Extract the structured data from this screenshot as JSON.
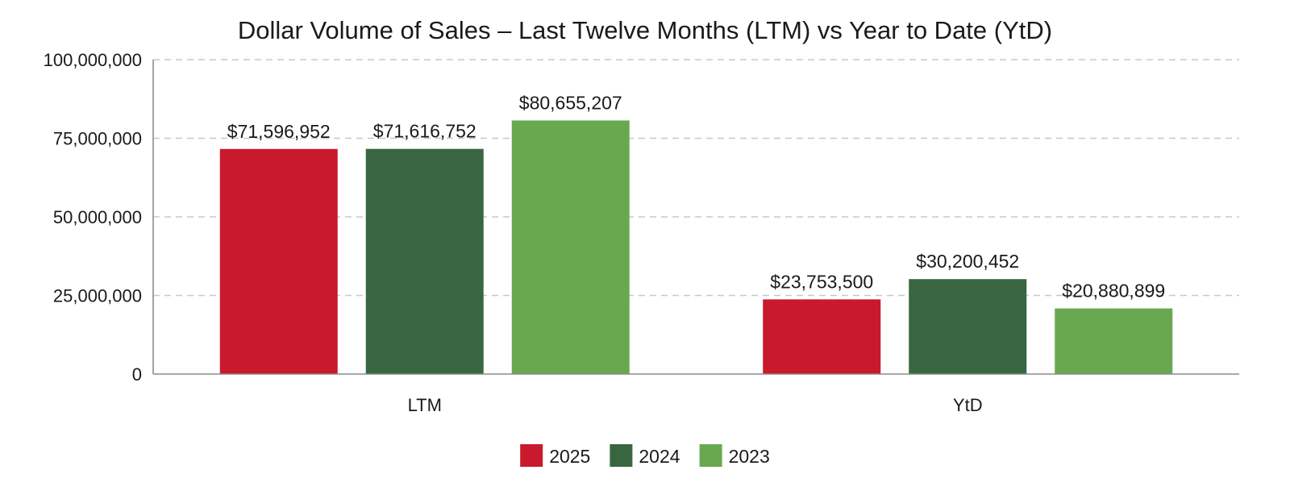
{
  "chart_data": {
    "type": "bar",
    "title": "Dollar Volume of Sales – Last Twelve Months (LTM) vs Year to Date (YtD)",
    "xlabel": "",
    "ylabel": "",
    "categories": [
      "LTM",
      "YtD"
    ],
    "series": [
      {
        "name": "2025",
        "color": "#c8192d",
        "values": [
          71596952,
          23753500
        ],
        "labels": [
          "$71,596,952",
          "$23,753,500"
        ]
      },
      {
        "name": "2024",
        "color": "#386641",
        "values": [
          71616752,
          30200452
        ],
        "labels": [
          "$71,616,752",
          "$30,200,452"
        ]
      },
      {
        "name": "2023",
        "color": "#6aa84f",
        "values": [
          80655207,
          20880899
        ],
        "labels": [
          "$80,655,207",
          "$20,880,899"
        ]
      }
    ],
    "ylim": [
      0,
      100000000
    ],
    "yticks": [
      0,
      25000000,
      50000000,
      75000000,
      100000000
    ],
    "ytick_labels": [
      "0",
      "25,000,000",
      "50,000,000",
      "75,000,000",
      "100,000,000"
    ],
    "grid": true,
    "legend_position": "bottom-center"
  }
}
